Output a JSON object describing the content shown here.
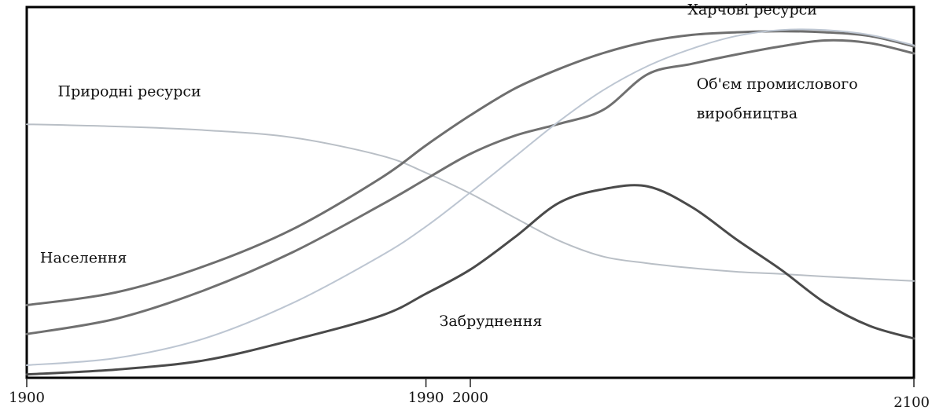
{
  "chart_data": {
    "type": "line",
    "title": "",
    "xlabel": "",
    "ylabel": "",
    "xlim": [
      1900,
      2100
    ],
    "ylim": [
      0,
      100
    ],
    "x_ticks": [
      "1900",
      "1990",
      "2000",
      "2100"
    ],
    "grid": false,
    "legend": "none",
    "series": [
      {
        "name": "Природні ресурси",
        "color": "#b9bfc6",
        "stroke_width": 2,
        "points": [
          [
            1900,
            68.4
          ],
          [
            1920,
            67.8
          ],
          [
            1940,
            66.8
          ],
          [
            1960,
            64.8
          ],
          [
            1980,
            59.9
          ],
          [
            1990,
            55.3
          ],
          [
            2000,
            49.7
          ],
          [
            2010,
            43.2
          ],
          [
            2020,
            37.0
          ],
          [
            2030,
            32.7
          ],
          [
            2040,
            30.9
          ],
          [
            2050,
            29.6
          ],
          [
            2060,
            28.6
          ],
          [
            2070,
            28.0
          ],
          [
            2080,
            27.3
          ],
          [
            2090,
            26.7
          ],
          [
            2100,
            26.1
          ]
        ]
      },
      {
        "name": "Населення",
        "color": "#6e6e6e",
        "stroke_width": 3,
        "points": [
          [
            1900,
            19.6
          ],
          [
            1920,
            23.0
          ],
          [
            1940,
            30.1
          ],
          [
            1960,
            40.1
          ],
          [
            1980,
            54.0
          ],
          [
            1990,
            62.7
          ],
          [
            2000,
            70.8
          ],
          [
            2010,
            78.0
          ],
          [
            2020,
            83.3
          ],
          [
            2030,
            87.6
          ],
          [
            2040,
            90.7
          ],
          [
            2050,
            92.5
          ],
          [
            2060,
            93.2
          ],
          [
            2070,
            93.5
          ],
          [
            2080,
            93.2
          ],
          [
            2090,
            92.2
          ],
          [
            2100,
            89.4
          ]
        ]
      },
      {
        "name": "Об'єм промислового виробництва",
        "color": "#707070",
        "stroke_width": 3,
        "points": [
          [
            1900,
            11.8
          ],
          [
            1920,
            15.9
          ],
          [
            1940,
            23.6
          ],
          [
            1960,
            33.9
          ],
          [
            1980,
            46.7
          ],
          [
            1990,
            53.6
          ],
          [
            2000,
            60.4
          ],
          [
            2010,
            65.3
          ],
          [
            2020,
            68.5
          ],
          [
            2030,
            72.3
          ],
          [
            2040,
            81.9
          ],
          [
            2050,
            84.7
          ],
          [
            2060,
            87.2
          ],
          [
            2070,
            89.4
          ],
          [
            2080,
            91.0
          ],
          [
            2090,
            90.3
          ],
          [
            2100,
            87.5
          ]
        ]
      },
      {
        "name": "Харчові ресурси",
        "color": "#bdc6d2",
        "stroke_width": 2,
        "points": [
          [
            1900,
            3.4
          ],
          [
            1920,
            5.3
          ],
          [
            1940,
            10.6
          ],
          [
            1960,
            20.2
          ],
          [
            1980,
            33.0
          ],
          [
            1990,
            40.8
          ],
          [
            2000,
            50.0
          ],
          [
            2010,
            59.6
          ],
          [
            2020,
            69.2
          ],
          [
            2030,
            77.6
          ],
          [
            2040,
            84.1
          ],
          [
            2050,
            88.8
          ],
          [
            2060,
            92.2
          ],
          [
            2070,
            93.8
          ],
          [
            2080,
            93.8
          ],
          [
            2090,
            92.5
          ],
          [
            2100,
            89.7
          ]
        ]
      },
      {
        "name": "Забруднення",
        "color": "#4a4a4a",
        "stroke_width": 3,
        "points": [
          [
            1900,
            0.9
          ],
          [
            1920,
            2.2
          ],
          [
            1940,
            4.7
          ],
          [
            1960,
            10.2
          ],
          [
            1980,
            16.8
          ],
          [
            1990,
            22.7
          ],
          [
            2000,
            29.2
          ],
          [
            2010,
            37.9
          ],
          [
            2020,
            47.2
          ],
          [
            2030,
            50.9
          ],
          [
            2040,
            51.6
          ],
          [
            2050,
            46.0
          ],
          [
            2060,
            37.3
          ],
          [
            2070,
            29.2
          ],
          [
            2080,
            20.2
          ],
          [
            2090,
            14.0
          ],
          [
            2100,
            10.6
          ]
        ]
      }
    ],
    "annotations": [
      {
        "text": "Природні ресурси",
        "x": 1907,
        "y": 76
      },
      {
        "text": "Населення",
        "x": 1903,
        "y": 31
      },
      {
        "text": "Харчові ресурси",
        "x": 2049,
        "y": 98
      },
      {
        "text": "Об'єм промислового",
        "x": 2051,
        "y": 78
      },
      {
        "text": "виробництва",
        "x": 2051,
        "y": 70
      },
      {
        "text": "Забруднення",
        "x": 1993,
        "y": 14
      }
    ]
  }
}
